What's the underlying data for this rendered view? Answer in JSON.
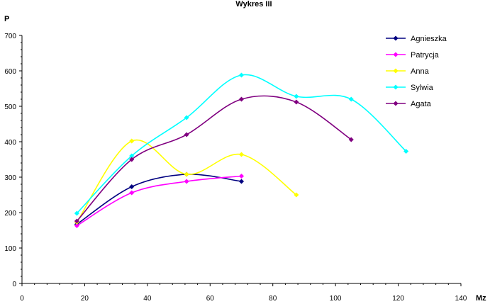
{
  "chart_data": {
    "type": "line",
    "title": "Wykres III",
    "xlabel": "Mz",
    "ylabel": "P",
    "xlim": [
      0,
      140
    ],
    "ylim": [
      0,
      700
    ],
    "x_ticks": [
      "0",
      "20",
      "40",
      "60",
      "80",
      "100",
      "120",
      "140"
    ],
    "y_ticks": [
      "0",
      "100",
      "200",
      "300",
      "400",
      "500",
      "600",
      "700"
    ],
    "smooth": true,
    "grid": false,
    "legend": "right",
    "series": [
      {
        "name": "Agnieszka",
        "color": "#000080",
        "points": [
          [
            17.5,
            167
          ],
          [
            35,
            273
          ],
          [
            52.5,
            308
          ],
          [
            70,
            288
          ]
        ]
      },
      {
        "name": "Patrycja",
        "color": "#ff00ff",
        "points": [
          [
            17.5,
            163
          ],
          [
            35,
            256
          ],
          [
            52.5,
            288
          ],
          [
            70,
            303
          ]
        ]
      },
      {
        "name": "Anna",
        "color": "#ffff00",
        "points": [
          [
            17.5,
            173
          ],
          [
            35,
            402
          ],
          [
            52.5,
            308
          ],
          [
            70,
            364
          ],
          [
            87.5,
            250
          ]
        ]
      },
      {
        "name": "Sylwia",
        "color": "#00ffff",
        "points": [
          [
            17.5,
            198
          ],
          [
            35,
            360
          ],
          [
            52.5,
            468
          ],
          [
            70,
            588
          ],
          [
            87.5,
            528
          ],
          [
            105,
            520
          ],
          [
            122.5,
            373
          ]
        ]
      },
      {
        "name": "Agata",
        "color": "#800080",
        "points": [
          [
            17.5,
            176
          ],
          [
            35,
            350
          ],
          [
            52.5,
            420
          ],
          [
            70,
            520
          ],
          [
            87.5,
            512
          ],
          [
            105,
            406
          ]
        ]
      }
    ]
  }
}
